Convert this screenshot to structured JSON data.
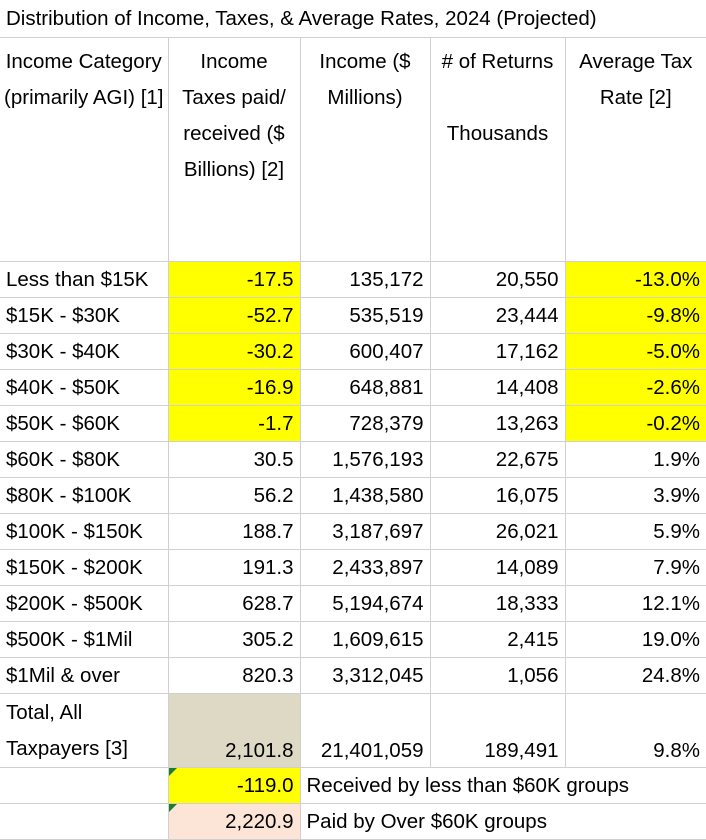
{
  "title": "Distribution of Income, Taxes, & Average Rates, 2024 (Projected)",
  "headers": [
    "Income Category (primarily AGI) [1]",
    "Income Taxes paid/ received ($ Billions) [2]",
    "Income ($ Millions)",
    "# of Returns\n\nThousands",
    "Average Tax Rate [2]"
  ],
  "rows": [
    {
      "category": "Less than $15K",
      "taxes": "-17.5",
      "income": "135,172",
      "returns": "20,550",
      "rate": "-13.0%"
    },
    {
      "category": "$15K - $30K",
      "taxes": "-52.7",
      "income": "535,519",
      "returns": "23,444",
      "rate": "-9.8%"
    },
    {
      "category": "$30K - $40K",
      "taxes": "-30.2",
      "income": "600,407",
      "returns": "17,162",
      "rate": "-5.0%"
    },
    {
      "category": "$40K - $50K",
      "taxes": "-16.9",
      "income": "648,881",
      "returns": "14,408",
      "rate": "-2.6%"
    },
    {
      "category": "$50K - $60K",
      "taxes": "-1.7",
      "income": "728,379",
      "returns": "13,263",
      "rate": "-0.2%"
    },
    {
      "category": "$60K - $80K",
      "taxes": "30.5",
      "income": "1,576,193",
      "returns": "22,675",
      "rate": "1.9%"
    },
    {
      "category": "$80K - $100K",
      "taxes": "56.2",
      "income": "1,438,580",
      "returns": "16,075",
      "rate": "3.9%"
    },
    {
      "category": "$100K - $150K",
      "taxes": "188.7",
      "income": "3,187,697",
      "returns": "26,021",
      "rate": "5.9%"
    },
    {
      "category": "$150K - $200K",
      "taxes": "191.3",
      "income": "2,433,897",
      "returns": "14,089",
      "rate": "7.9%"
    },
    {
      "category": "$200K - $500K",
      "taxes": "628.7",
      "income": "5,194,674",
      "returns": "18,333",
      "rate": "12.1%"
    },
    {
      "category": "$500K - $1Mil",
      "taxes": "305.2",
      "income": "1,609,615",
      "returns": "2,415",
      "rate": "19.0%"
    },
    {
      "category": "$1Mil & over",
      "taxes": "820.3",
      "income": "3,312,045",
      "returns": "1,056",
      "rate": "24.8%"
    }
  ],
  "total": {
    "category": "Total, All Taxpayers [3]",
    "taxes": "2,101.8",
    "income": "21,401,059",
    "returns": "189,491",
    "rate": "9.8%"
  },
  "notes": [
    {
      "value": "-119.0",
      "text": "Received by less than $60K groups"
    },
    {
      "value": "2,220.9",
      "text": "Paid by Over $60K groups"
    }
  ],
  "colors": {
    "highlight": "#ffff00",
    "total_fill": "#ddd9c4",
    "note_fill": "#fce4d6",
    "comment_marker": "#1e7b34",
    "gridline": "#d0d0d0"
  }
}
